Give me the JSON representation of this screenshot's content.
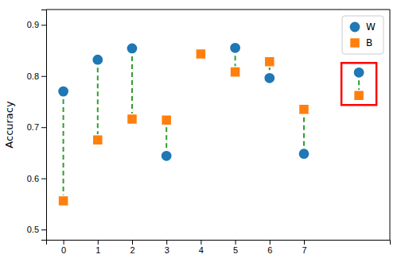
{
  "chart_data": {
    "type": "scatter",
    "x": [
      0,
      1,
      2,
      3,
      4,
      5,
      6,
      7,
      8.6
    ],
    "series": [
      {
        "name": "W",
        "marker": "circle",
        "values": [
          0.77,
          0.832,
          0.854,
          0.644,
          0.843,
          0.855,
          0.796,
          0.648,
          0.807
        ]
      },
      {
        "name": "B",
        "marker": "square",
        "values": [
          0.556,
          0.675,
          0.716,
          0.714,
          0.843,
          0.808,
          0.828,
          0.735,
          0.762
        ]
      }
    ],
    "ylabel": "Accuracy",
    "xlim": [
      -0.5,
      9.5
    ],
    "xticks": [
      0,
      1,
      2,
      3,
      4,
      5,
      6,
      7
    ],
    "ylim": [
      0.48,
      0.93
    ],
    "yticks": [
      0.5,
      0.6,
      0.7,
      0.8,
      0.9
    ],
    "legend": "upper right",
    "grid": false
  }
}
